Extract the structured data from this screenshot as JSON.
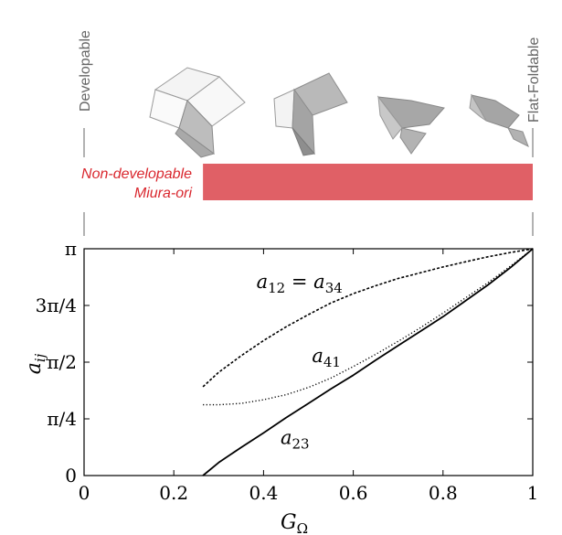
{
  "header": {
    "left_label": "Developable",
    "right_label": "Flat-Foldable"
  },
  "band": {
    "label_line1": "Non-developable",
    "label_line2": "Miura-ori",
    "x_start": 0.265,
    "x_end": 1.0,
    "color": "#e06066"
  },
  "colors": {
    "band": "#e06066",
    "band_label": "#d9272e",
    "side_label": "#666666",
    "axes": "#000000"
  },
  "chart_data": {
    "type": "line",
    "xlabel": "G",
    "xlabel_sub": "Ω",
    "ylabel": "a",
    "ylabel_sub": "ij",
    "xlim": [
      0,
      1
    ],
    "ylim": [
      0,
      3.14159
    ],
    "x_ticks": [
      {
        "value": 0,
        "label": "0"
      },
      {
        "value": 0.2,
        "label": "0.2"
      },
      {
        "value": 0.4,
        "label": "0.4"
      },
      {
        "value": 0.6,
        "label": "0.6"
      },
      {
        "value": 0.8,
        "label": "0.8"
      },
      {
        "value": 1.0,
        "label": "1"
      }
    ],
    "y_ticks": [
      {
        "value": 0,
        "label": "0"
      },
      {
        "value": 0.7854,
        "label": "π/4"
      },
      {
        "value": 1.5708,
        "label": "π/2"
      },
      {
        "value": 2.3562,
        "label": "3π/4"
      },
      {
        "value": 3.14159,
        "label": "π"
      }
    ],
    "grid": false,
    "series": [
      {
        "name": "a12 = a34",
        "style": "dashed",
        "x": [
          0.265,
          0.3,
          0.35,
          0.4,
          0.45,
          0.5,
          0.55,
          0.6,
          0.65,
          0.7,
          0.75,
          0.8,
          0.85,
          0.9,
          0.95,
          1.0
        ],
        "y": [
          1.23,
          1.43,
          1.66,
          1.87,
          2.06,
          2.23,
          2.39,
          2.52,
          2.63,
          2.73,
          2.81,
          2.89,
          2.96,
          3.03,
          3.09,
          3.14
        ]
      },
      {
        "name": "a41",
        "style": "dotted",
        "x": [
          0.265,
          0.3,
          0.35,
          0.4,
          0.45,
          0.5,
          0.55,
          0.6,
          0.65,
          0.7,
          0.75,
          0.8,
          0.85,
          0.9,
          0.95,
          1.0
        ],
        "y": [
          0.98,
          0.98,
          1.0,
          1.05,
          1.12,
          1.22,
          1.35,
          1.51,
          1.68,
          1.86,
          2.05,
          2.25,
          2.46,
          2.67,
          2.9,
          3.14
        ]
      },
      {
        "name": "a23",
        "style": "solid",
        "x": [
          0.265,
          0.3,
          0.35,
          0.4,
          0.45,
          0.5,
          0.55,
          0.6,
          0.65,
          0.7,
          0.75,
          0.8,
          0.85,
          0.9,
          0.95,
          1.0
        ],
        "y": [
          0.0,
          0.18,
          0.39,
          0.59,
          0.8,
          1.0,
          1.2,
          1.39,
          1.6,
          1.8,
          2.0,
          2.2,
          2.42,
          2.64,
          2.88,
          3.14
        ]
      }
    ],
    "annotations": [
      {
        "base": "a",
        "sub": "12",
        "mid": " = ",
        "base2": "a",
        "sub2": "34",
        "x": 0.48,
        "y": 2.6
      },
      {
        "base": "a",
        "sub": "41",
        "x": 0.54,
        "y": 1.57
      },
      {
        "base": "a",
        "sub": "23",
        "x": 0.47,
        "y": 0.44
      }
    ]
  },
  "icons": [
    "developable-miura-fold-icon",
    "partially-folded-miura-icon",
    "nearly-flat-folded-miura-icon",
    "almost-flat-folded-miura-icon"
  ]
}
